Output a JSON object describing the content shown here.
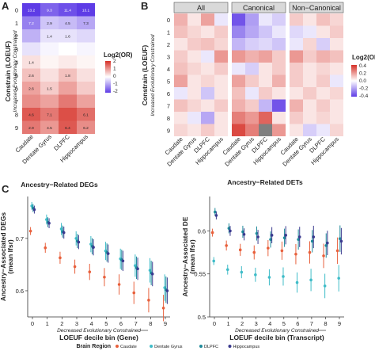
{
  "panels": {
    "A": {
      "letter": "A",
      "ylabel": "Constrain (LOEUF)",
      "ysub": "Increased Evolutionary Constrained",
      "xlabel": "Ancestry−Related DEGs",
      "legend_title": "Log2(OR)",
      "legend_ticks": [
        "2",
        "1",
        "0",
        "-1",
        "-2"
      ]
    },
    "B": {
      "letter": "B",
      "ylabel": "Constrain (LOEUF)",
      "ysub": "Increased Evolutionary Constrained",
      "xlabel": "Ancestry−Related DETs",
      "legend_title": "Log2(OR)",
      "legend_ticks": [
        "0.4",
        "0.2",
        "0.0",
        "-0.2",
        "-0.4"
      ],
      "strips": [
        "All",
        "Canonical",
        "Non−Canonical"
      ]
    },
    "C": {
      "letter": "C",
      "left": {
        "ylabel": "Ancestry−Associated DEGs",
        "ylabel2": "(mean lfsr)",
        "xlabel": "LOEUF decile bin (Gene)",
        "xsub": "Decreased Evolutionary Constrained"
      },
      "right": {
        "ylabel": "Ancestry−Associated DE",
        "ylabel2": "(mean lfsr)",
        "xlabel": "LOEUF decile bin (Transcript)",
        "xsub": "Decreased Evolutionary Constrained"
      },
      "legend_title": "Brain Region"
    }
  },
  "regions": [
    "Caudate",
    "Dentate Gyrus",
    "DLPFC",
    "Hippocampus"
  ],
  "region_colors": {
    "Caudate": "#e8603c",
    "Dentate Gyrus": "#3fbcc8",
    "DLPFC": "#1f8a9a",
    "Hippocampus": "#3b3b8f"
  },
  "chart_data": [
    {
      "id": "A",
      "type": "heatmap",
      "xlabel": "Ancestry−Related DEGs",
      "ylabel": "Constrain (LOEUF)",
      "x": [
        "Caudate",
        "Dentate Gyrus",
        "DLPFC",
        "Hippocampus"
      ],
      "y": [
        "0",
        "1",
        "2",
        "3",
        "4",
        "5",
        "6",
        "7",
        "8",
        "9"
      ],
      "scale": [
        -2,
        2
      ],
      "values": [
        [
          -2.0,
          -1.6,
          -1.8,
          -2.0
        ],
        [
          -1.3,
          -0.6,
          -0.7,
          -0.9
        ],
        [
          -0.8,
          -0.3,
          -0.3,
          -0.4
        ],
        [
          -0.3,
          -0.1,
          0.0,
          -0.1
        ],
        [
          0.3,
          0.1,
          0.2,
          0.1
        ],
        [
          0.6,
          0.3,
          0.6,
          0.3
        ],
        [
          0.9,
          0.5,
          0.9,
          0.5
        ],
        [
          1.1,
          0.9,
          1.3,
          0.9
        ],
        [
          1.6,
          1.3,
          1.7,
          1.4
        ],
        [
          1.3,
          1.0,
          1.6,
          1.1
        ]
      ],
      "labels": [
        [
          "13.2",
          "9.3",
          "11.4",
          "13.1"
        ],
        [
          "7.2",
          "2.9",
          "4.5",
          "7.3"
        ],
        [
          "",
          "1.4",
          "1.6",
          ""
        ],
        [
          "",
          "",
          "",
          ""
        ],
        [
          "1.4",
          "",
          "",
          ""
        ],
        [
          "2.6",
          "",
          "1.8",
          ""
        ],
        [
          "2.6",
          "1.5",
          "",
          ""
        ],
        [
          "",
          "",
          "",
          ""
        ],
        [
          "4.6",
          "7.1",
          "",
          "6.1"
        ],
        [
          "2.9",
          "4.5",
          "6.4",
          "6.2"
        ]
      ]
    },
    {
      "id": "B",
      "type": "heatmap",
      "xlabel": "Ancestry−Related DETs",
      "ylabel": "Constrain (LOEUF)",
      "facets": [
        "All",
        "Canonical",
        "Non−Canonical"
      ],
      "x": [
        "Caudate",
        "Dentate Gyrus",
        "DLPFC",
        "Hippocampus"
      ],
      "y": [
        "0",
        "1",
        "2",
        "3",
        "4",
        "5",
        "6",
        "7",
        "8",
        "9"
      ],
      "scale": [
        -0.4,
        0.4
      ],
      "values": [
        [
          [
            0.15,
            0.05,
            0.18,
            -0.05
          ],
          [
            0.12,
            0.08,
            0.05,
            0.1
          ],
          [
            0.05,
            0.1,
            0.12,
            0.08
          ],
          [
            0.1,
            0.05,
            -0.05,
            0.2
          ],
          [
            0.12,
            0.08,
            0.05,
            0.1
          ],
          [
            0.18,
            0.05,
            0.08,
            0.05
          ],
          [
            -0.05,
            0.05,
            -0.12,
            0.05
          ],
          [
            0.12,
            0.08,
            0.05,
            0.1
          ],
          [
            0.05,
            -0.05,
            -0.18,
            0.05
          ],
          [
            0.08,
            0.05,
            0.1,
            0.05
          ]
        ],
        [
          [
            -0.35,
            -0.2,
            -0.05,
            -0.1
          ],
          [
            -0.25,
            -0.18,
            -0.12,
            -0.05
          ],
          [
            -0.15,
            -0.1,
            -0.08,
            -0.12
          ],
          [
            0.2,
            0.15,
            0.18,
            0.1
          ],
          [
            -0.05,
            -0.1,
            0.05,
            0.1
          ],
          [
            0.18,
            0.1,
            0.05,
            0.15
          ],
          [
            0.12,
            -0.05,
            0.1,
            0.05
          ],
          [
            0.15,
            0.1,
            -0.15,
            -0.35
          ],
          [
            0.25,
            0.2,
            0.3,
            0.05
          ],
          [
            0.35,
            0.25,
            null,
            0.2
          ]
        ],
        [
          [
            0.1,
            0.05,
            0.12,
            0.08
          ],
          [
            -0.08,
            -0.05,
            0.05,
            0.1
          ],
          [
            -0.05,
            0.08,
            -0.1,
            0.05
          ],
          [
            0.2,
            0.1,
            0.15,
            0.12
          ],
          [
            0.1,
            0.05,
            0.08,
            0.05
          ],
          [
            0.1,
            0.05,
            0.1,
            -0.05
          ],
          [
            0.05,
            0.1,
            0.05,
            0.08
          ],
          [
            0.15,
            0.05,
            0.1,
            0.05
          ],
          [
            0.1,
            0.05,
            0.08,
            0.05
          ],
          [
            0.05,
            -0.1,
            -0.05,
            0.08
          ]
        ]
      ]
    },
    {
      "id": "C-left",
      "type": "scatter",
      "xlabel": "LOEUF decile bin (Gene)",
      "ylabel": "Ancestry−Associated DEGs (mean lfsr)",
      "x": [
        0,
        1,
        2,
        3,
        4,
        5,
        6,
        7,
        8,
        9
      ],
      "ylim": [
        0.55,
        0.78
      ],
      "y_ticks": [
        0.6,
        0.7
      ],
      "series": [
        {
          "name": "Caudate",
          "values": [
            0.714,
            0.682,
            0.663,
            0.646,
            0.636,
            0.626,
            0.612,
            0.596,
            0.582,
            0.567
          ]
        },
        {
          "name": "Dentate Gyrus",
          "values": [
            0.762,
            0.736,
            0.718,
            0.7,
            0.689,
            0.676,
            0.661,
            0.648,
            0.639,
            0.606
          ]
        },
        {
          "name": "DLPFC",
          "values": [
            0.758,
            0.731,
            0.713,
            0.695,
            0.685,
            0.673,
            0.659,
            0.644,
            0.634,
            0.602
          ]
        },
        {
          "name": "Hippocampus",
          "values": [
            0.755,
            0.729,
            0.711,
            0.693,
            0.683,
            0.671,
            0.657,
            0.642,
            0.632,
            0.6
          ]
        }
      ]
    },
    {
      "id": "C-right",
      "type": "scatter",
      "xlabel": "LOEUF decile bin (Transcript)",
      "ylabel": "Ancestry−Associated DE (mean lfsr)",
      "x": [
        0,
        1,
        2,
        3,
        4,
        5,
        6,
        7,
        8,
        9
      ],
      "ylim": [
        0.5,
        0.64
      ],
      "y_ticks": [
        0.5,
        0.55,
        0.6
      ],
      "series": [
        {
          "name": "Caudate",
          "values": [
            0.598,
            0.583,
            0.578,
            0.575,
            0.58,
            0.577,
            0.573,
            0.575,
            0.571,
            0.577
          ]
        },
        {
          "name": "Dentate Gyrus",
          "values": [
            0.565,
            0.555,
            0.552,
            0.549,
            0.546,
            0.547,
            0.54,
            0.543,
            0.536,
            0.545
          ]
        },
        {
          "name": "DLPFC",
          "values": [
            0.622,
            0.603,
            0.599,
            0.597,
            0.59,
            0.592,
            0.59,
            0.588,
            0.583,
            0.591
          ]
        },
        {
          "name": "Hippocampus",
          "values": [
            0.618,
            0.6,
            0.596,
            0.593,
            0.595,
            0.595,
            0.593,
            0.593,
            0.586,
            0.588
          ]
        }
      ]
    }
  ]
}
